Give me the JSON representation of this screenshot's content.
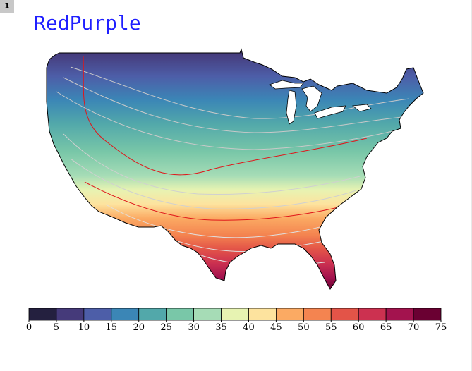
{
  "page_number": "1",
  "title": "RedPurple",
  "title_color": "#1f1fff",
  "map": {
    "region": "contiguous United States",
    "field": "gradient increasing from north to south",
    "highlight_contours": [
      30,
      50
    ],
    "highlight_contour_color": "#e0161a"
  },
  "colorbar": {
    "ticks": [
      "0",
      "5",
      "10",
      "15",
      "20",
      "25",
      "30",
      "35",
      "40",
      "45",
      "50",
      "55",
      "60",
      "65",
      "70",
      "75"
    ],
    "colors": [
      "#24203f",
      "#453a7a",
      "#4d5ea8",
      "#3b86b6",
      "#52a8aa",
      "#79c7a8",
      "#a6dcb6",
      "#e7f3b2",
      "#fde39e",
      "#fbaa63",
      "#f48450",
      "#e35448",
      "#cc3150",
      "#a3134e",
      "#6a0032"
    ]
  }
}
